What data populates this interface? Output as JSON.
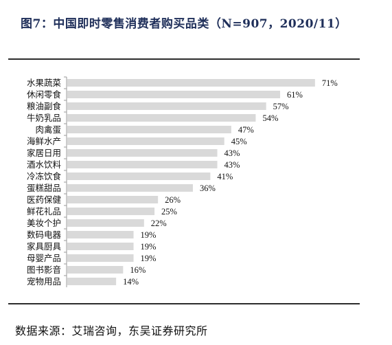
{
  "title": "图7：中国即时零售消费者购买品类（N=907，2020/11）",
  "source": "数据来源：艾瑞咨询，东吴证券研究所",
  "colors": {
    "bar": "#d9d9d9",
    "axis": "#999999",
    "title": "#1f2f5a",
    "text": "#111111"
  },
  "chart_data": {
    "type": "bar",
    "orientation": "horizontal",
    "categories": [
      "水果蔬菜",
      "休闲零食",
      "粮油副食",
      "牛奶乳品",
      "肉禽蛋",
      "海鲜水产",
      "家居日用",
      "酒水饮料",
      "冷冻饮食",
      "蛋糕甜品",
      "医药保健",
      "鲜花礼品",
      "美妆个护",
      "数码电器",
      "家具厨具",
      "母婴产品",
      "图书影音",
      "宠物用品"
    ],
    "values": [
      71,
      61,
      57,
      54,
      47,
      45,
      43,
      43,
      41,
      36,
      26,
      25,
      22,
      19,
      19,
      19,
      16,
      14
    ],
    "value_labels": [
      "71%",
      "61%",
      "57%",
      "54%",
      "47%",
      "45%",
      "43%",
      "43%",
      "41%",
      "36%",
      "26%",
      "25%",
      "22%",
      "19%",
      "19%",
      "19%",
      "16%",
      "14%"
    ],
    "xlim": [
      0,
      73
    ],
    "grid": false,
    "legend": "none"
  }
}
